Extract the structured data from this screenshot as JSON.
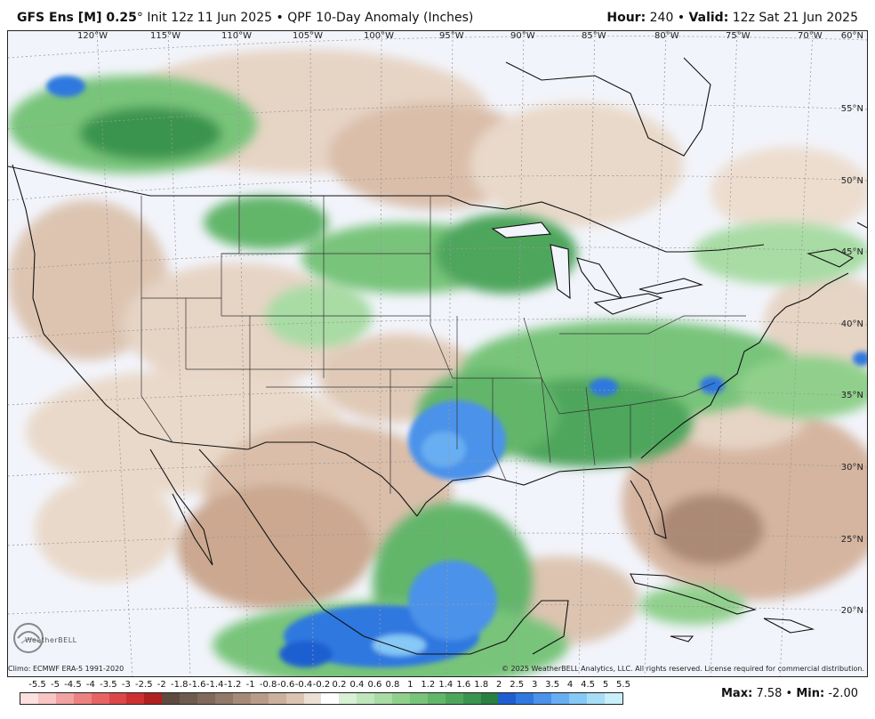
{
  "header": {
    "model": "GFS Ens [M] 0.25",
    "degree": "°",
    "init": "Init 12z 11 Jun 2025",
    "sep": "•",
    "product": "QPF 10-Day Anomaly (Inches)",
    "hour_label": "Hour",
    "hour_value": "240",
    "valid_label": "Valid",
    "valid_value": "12z Sat 21 Jun 2025"
  },
  "map": {
    "lon_labels": [
      "120°W",
      "115°W",
      "110°W",
      "105°W",
      "100°W",
      "95°W",
      "90°W",
      "85°W",
      "80°W",
      "75°W",
      "70°W"
    ],
    "lat_labels": [
      "60°N",
      "55°N",
      "50°N",
      "45°N",
      "40°N",
      "35°N",
      "30°N",
      "25°N",
      "20°N"
    ],
    "colors": {
      "wet_light": "#c3e6c0",
      "wet_mid": "#5db870",
      "wet_dark": "#2f8a4a",
      "very_wet": "#3f86e0",
      "extreme_wet": "#1a5fd0",
      "dry_light": "#e6d3c2",
      "dry_mid": "#c9a48a",
      "dry_dark": "#8d6a55",
      "background": "#f2f4fb"
    }
  },
  "footer": {
    "climo": "Climo: ECMWF ERA-5 1991-2020",
    "copyright": "© 2025 WeatherBELL Analytics, LLC. All rights reserved. License required for commercial distribution.",
    "logo_text": "WeatherBELL"
  },
  "colorbar": {
    "ticks": [
      "-5.5",
      "-5",
      "-4.5",
      "-4",
      "-3.5",
      "-3",
      "-2.5",
      "-2",
      "-1.8",
      "-1.6",
      "-1.4",
      "-1.2",
      "-1",
      "-0.8",
      "-0.6",
      "-0.4",
      "-0.2",
      "0.2",
      "0.4",
      "0.6",
      "0.8",
      "1",
      "1.2",
      "1.4",
      "1.6",
      "1.8",
      "2",
      "2.5",
      "3",
      "3.5",
      "4",
      "4.5",
      "5",
      "5.5"
    ],
    "colors": [
      "#fde0e0",
      "#f8c4c4",
      "#f2a2a2",
      "#ec8282",
      "#e66464",
      "#dc4848",
      "#cc3030",
      "#b02020",
      "#5e4a40",
      "#6e5a4e",
      "#80685a",
      "#927868",
      "#a68a78",
      "#b89c8a",
      "#cbb09e",
      "#dcc4b2",
      "#ece0d4",
      "#ffffff",
      "#d8f0d4",
      "#c0e6bc",
      "#a8dca4",
      "#90d08c",
      "#78c47a",
      "#62b66a",
      "#4ea65c",
      "#3a944e",
      "#2a8040",
      "#1f5ed0",
      "#2f78e0",
      "#4b92ea",
      "#68aef2",
      "#86c8f6",
      "#a6def8",
      "#c8f0fa"
    ]
  },
  "stats": {
    "max_label": "Max",
    "max_value": "7.58",
    "min_label": "Min",
    "min_value": "-2.00"
  }
}
